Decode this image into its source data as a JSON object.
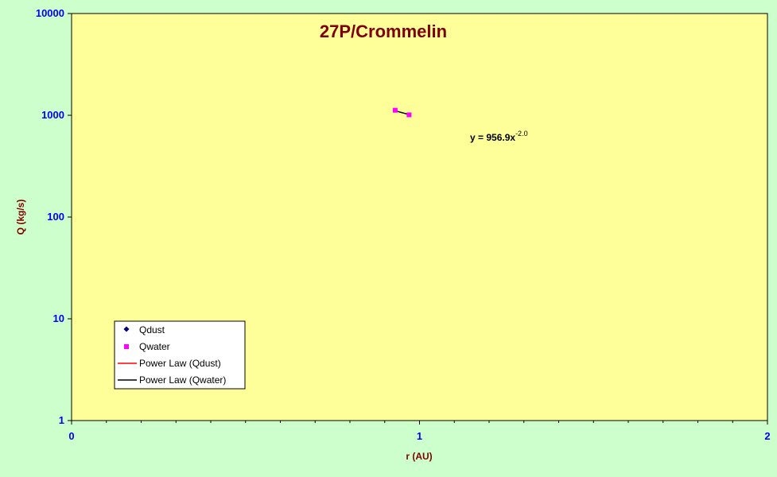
{
  "chart_data": {
    "type": "scatter",
    "title": "27P/Crommelin",
    "xlabel": "r (AU)",
    "ylabel": "Q (kg/s)",
    "xlim": [
      0,
      2
    ],
    "ylim": [
      1,
      10000
    ],
    "y_scale": "log",
    "x_ticks": [
      "0",
      "1",
      "2"
    ],
    "y_ticks": [
      "1",
      "10",
      "100",
      "1000",
      "10000"
    ],
    "grid": false,
    "legend_placement": "bottom-left",
    "series": [
      {
        "name": "Qdust",
        "marker": "diamond",
        "color": "#000080",
        "x": [],
        "y": []
      },
      {
        "name": "Qwater",
        "marker": "square",
        "color": "#ff00ff",
        "x": [
          0.93,
          0.97
        ],
        "y": [
          1120,
          1010
        ]
      }
    ],
    "trendlines": [
      {
        "name": "Power Law (Qdust)",
        "color": "#ff0000",
        "coef": null,
        "exponent": null
      },
      {
        "name": "Power Law (Qwater)",
        "color": "#000000",
        "coef": 956.9,
        "exponent": -2.0,
        "x_range": [
          0.93,
          0.97
        ]
      }
    ],
    "annotation": {
      "base": "y = 956.9x",
      "exponent": "-2.0"
    },
    "colors": {
      "background": "#ccffcc",
      "plot_area": "#ffff99",
      "title": "#800000",
      "tick_labels": "#0000ff"
    }
  }
}
